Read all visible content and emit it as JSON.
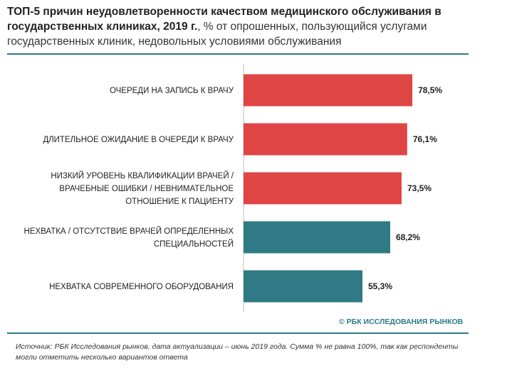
{
  "title": {
    "bold": "ТОП-5 причин неудовлетворенности качеством медицинского обслуживания в государственных клиниках, 2019 г.",
    "rest": ", % от опрошенных, пользующийся услугами государственных клиник, недовольных условиями обслуживания"
  },
  "brand": "© РБК ИССЛЕДОВАНИЯ РЫНКОВ",
  "source": "Источник: РБК Исследования рынков, дата актуализации – июнь 2019 года. Сумма % не равна 100%, так как респонденты могли отметить несколько вариантов ответа",
  "colors": {
    "red": "#e04545",
    "teal": "#2f7a84",
    "rule": "#2b7a86"
  },
  "chart_data": {
    "type": "bar",
    "orientation": "horizontal",
    "categories": [
      [
        "ОЧЕРЕДИ НА ЗАПИСЬ К ВРАЧУ"
      ],
      [
        "ДЛИТЕЛЬНОЕ ОЖИДАНИЕ В ОЧЕРЕДИ К ВРАЧУ"
      ],
      [
        "НИЗКИЙ УРОВЕНЬ КВАЛИФИКАЦИИ ВРАЧЕЙ /",
        "ВРАЧЕБНЫЕ ОШИБКИ / НЕВНИМАТЕЛЬНОЕ",
        "ОТНОШЕНИЕ К ПАЦИЕНТУ"
      ],
      [
        "НЕХВАТКА / ОТСУТСТВИЕ ВРАЧЕЙ ОПРЕДЕЛЕННЫХ",
        "СПЕЦИАЛЬНОСТЕЙ"
      ],
      [
        "НЕХВАТКА СОВРЕМЕННОГО ОБОРУДОВАНИЯ"
      ]
    ],
    "values": [
      78.5,
      76.1,
      73.5,
      68.2,
      55.3
    ],
    "value_labels": [
      "78,5%",
      "76,1%",
      "73,5%",
      "68,2%",
      "55,3%"
    ],
    "bar_colors": [
      "red",
      "red",
      "red",
      "teal",
      "teal"
    ],
    "xlim": [
      0,
      100
    ]
  }
}
